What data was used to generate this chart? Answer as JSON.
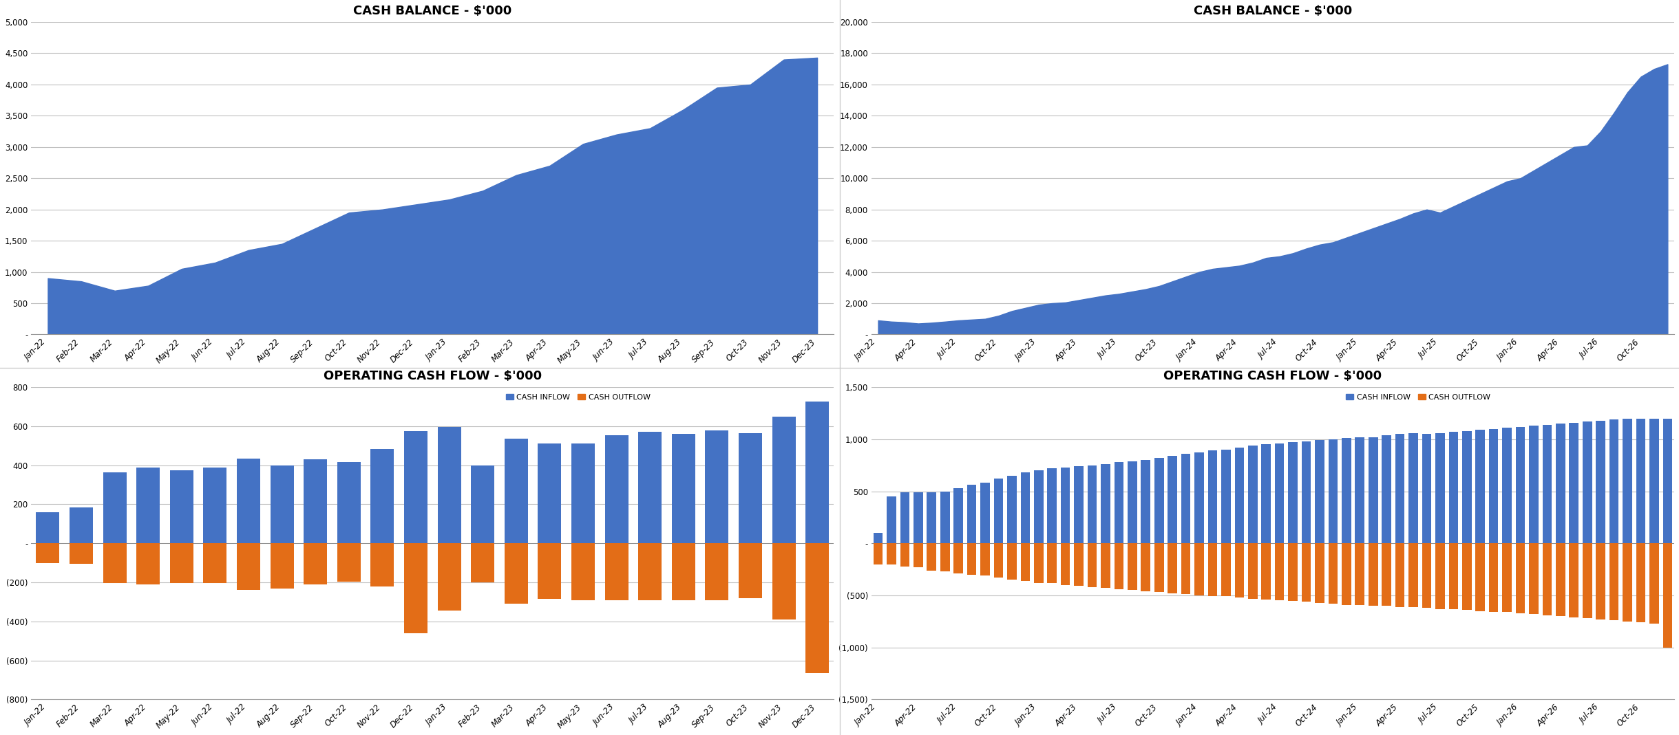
{
  "title_tl": "CASH BALANCE - $'000",
  "title_tr": "CASH BALANCE - $'000",
  "title_bl": "OPERATING CASH FLOW - $'000",
  "title_br": "OPERATING CASH FLOW - $'000",
  "tl_labels": [
    "Jan-22",
    "Feb-22",
    "Mar-22",
    "Apr-22",
    "May-22",
    "Jun-22",
    "Jul-22",
    "Aug-22",
    "Sep-22",
    "Oct-22",
    "Nov-22",
    "Dec-22",
    "Jan-23",
    "Feb-23",
    "Mar-23",
    "Apr-23",
    "May-23",
    "Jun-23",
    "Jul-23",
    "Aug-23",
    "Sep-23",
    "Oct-23",
    "Nov-23",
    "Dec-23"
  ],
  "tl_values": [
    900,
    850,
    700,
    780,
    1050,
    1150,
    1350,
    1450,
    1700,
    1950,
    2000,
    2080,
    2160,
    2300,
    2550,
    2700,
    3050,
    3200,
    3300,
    3600,
    3950,
    4000,
    4400,
    4430
  ],
  "tr_monthly_values": [
    900,
    820,
    780,
    700,
    750,
    820,
    900,
    950,
    1000,
    1200,
    1500,
    1700,
    1900,
    2000,
    2050,
    2200,
    2350,
    2500,
    2600,
    2750,
    2900,
    3100,
    3400,
    3700,
    4000,
    4200,
    4300,
    4400,
    4600,
    4900,
    5000,
    5200,
    5500,
    5750,
    5900,
    6200,
    6500,
    6800,
    7100,
    7400,
    7750,
    8000,
    7800,
    8200,
    8600,
    9000,
    9400,
    9800,
    10000,
    10500,
    11000,
    11500,
    12000,
    12100,
    13000,
    14200,
    15500,
    16500,
    17000,
    17300
  ],
  "tr_tick_positions": [
    0,
    3,
    6,
    9,
    12,
    15,
    18,
    21,
    24,
    27,
    30,
    33,
    36,
    39,
    42,
    45,
    48,
    51,
    54,
    57
  ],
  "tr_tick_labels": [
    "Jan-22",
    "Apr-22",
    "Jul-22",
    "Oct-22",
    "Jan-23",
    "Apr-23",
    "Jul-23",
    "Oct-23",
    "Jan-24",
    "Apr-24",
    "Jul-24",
    "Oct-24",
    "Jan-25",
    "Apr-25",
    "Jul-25",
    "Oct-25",
    "Jan-26",
    "Apr-26",
    "Jul-26",
    "Oct-26"
  ],
  "bl_inflow": [
    160,
    185,
    365,
    390,
    375,
    390,
    435,
    400,
    430,
    415,
    485,
    575,
    595,
    400,
    535,
    510,
    510,
    555,
    570,
    560,
    580,
    565,
    650,
    725
  ],
  "bl_outflow": [
    -100,
    -105,
    -205,
    -210,
    -205,
    -205,
    -240,
    -230,
    -210,
    -195,
    -220,
    -460,
    -345,
    -200,
    -310,
    -285,
    -290,
    -290,
    -290,
    -290,
    -290,
    -280,
    -390,
    -665
  ],
  "bl_labels": [
    "Jan-22",
    "Feb-22",
    "Mar-22",
    "Apr-22",
    "May-22",
    "Jun-22",
    "Jul-22",
    "Aug-22",
    "Sep-22",
    "Oct-22",
    "Nov-22",
    "Dec-22",
    "Jan-23",
    "Feb-23",
    "Mar-23",
    "Apr-23",
    "May-23",
    "Jun-23",
    "Jul-23",
    "Aug-23",
    "Sep-23",
    "Oct-23",
    "Nov-23",
    "Dec-23"
  ],
  "br_inflow": [
    100,
    450,
    490,
    490,
    490,
    500,
    530,
    560,
    580,
    620,
    650,
    680,
    700,
    720,
    730,
    740,
    750,
    760,
    780,
    790,
    800,
    820,
    840,
    860,
    870,
    890,
    900,
    920,
    940,
    950,
    960,
    970,
    980,
    990,
    1000,
    1010,
    1020,
    1020,
    1040,
    1050,
    1060,
    1050,
    1060,
    1070,
    1080,
    1090,
    1100,
    1110,
    1120,
    1130,
    1140,
    1150,
    1160,
    1170,
    1180,
    1190,
    1200,
    1200,
    1200,
    1200
  ],
  "br_outflow": [
    -200,
    -200,
    -220,
    -230,
    -260,
    -270,
    -290,
    -300,
    -310,
    -330,
    -350,
    -360,
    -380,
    -380,
    -400,
    -410,
    -420,
    -430,
    -440,
    -450,
    -460,
    -470,
    -480,
    -490,
    -500,
    -510,
    -510,
    -520,
    -530,
    -540,
    -545,
    -550,
    -560,
    -570,
    -580,
    -590,
    -590,
    -600,
    -600,
    -610,
    -610,
    -620,
    -630,
    -630,
    -640,
    -650,
    -660,
    -660,
    -670,
    -680,
    -690,
    -700,
    -710,
    -720,
    -730,
    -740,
    -750,
    -760,
    -770,
    -1000
  ],
  "br_tick_positions": [
    0,
    3,
    6,
    9,
    12,
    15,
    18,
    21,
    24,
    27,
    30,
    33,
    36,
    39,
    42,
    45,
    48,
    51,
    54,
    57
  ],
  "br_tick_labels": [
    "Jan-22",
    "Apr-22",
    "Jul-22",
    "Oct-22",
    "Jan-23",
    "Apr-23",
    "Jul-23",
    "Oct-23",
    "Jan-24",
    "Apr-24",
    "Jul-24",
    "Oct-24",
    "Jan-25",
    "Apr-25",
    "Jul-25",
    "Oct-25",
    "Jan-26",
    "Apr-26",
    "Jul-26",
    "Oct-26"
  ],
  "area_color": "#4472C4",
  "inflow_color": "#4472C4",
  "outflow_color": "#E36D17",
  "bg_color": "#FFFFFF",
  "grid_color": "#BFBFBF",
  "title_font_size": 13,
  "tick_font_size": 8.5,
  "legend_font_size": 8,
  "axis_label_fontweight": "bold"
}
